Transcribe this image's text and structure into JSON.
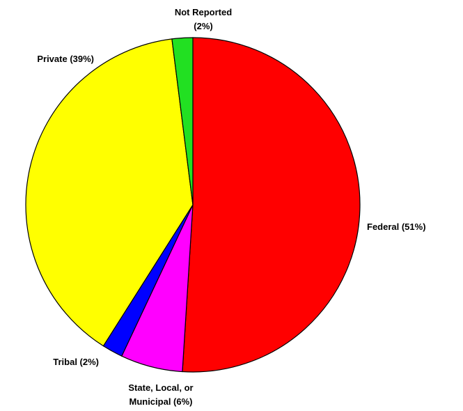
{
  "chart_data": {
    "type": "pie",
    "categories": [
      "Federal (51%)",
      "State, Local, or\nMunicipal (6%)",
      "Tribal (2%)",
      "Private (39%)",
      "Not Reported\n(2%)"
    ],
    "values": [
      51,
      6,
      2,
      39,
      2
    ],
    "colors": [
      "#ff0000",
      "#ff00ff",
      "#0000ff",
      "#ffff00",
      "#22e022"
    ]
  }
}
